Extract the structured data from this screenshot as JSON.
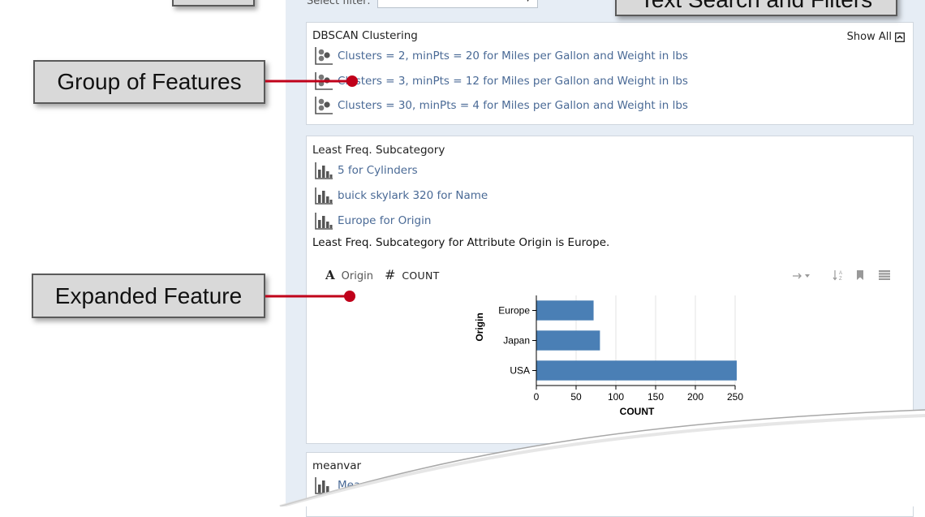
{
  "filter": {
    "label": "Select filter:"
  },
  "clustering": {
    "title": "DBSCAN Clustering",
    "show_all": "Show All",
    "items": [
      {
        "label": "Clusters = 2, minPts = 20 for Miles per Gallon and Weight in lbs"
      },
      {
        "label": "Clusters = 3, minPts = 12 for Miles per Gallon and Weight in lbs"
      },
      {
        "label": "Clusters = 30, minPts = 4 for Miles per Gallon and Weight in lbs"
      }
    ]
  },
  "least_freq": {
    "title": "Least Freq. Subcategory",
    "items": [
      {
        "label": "5 for Cylinders"
      },
      {
        "label": "buick skylark 320 for Name"
      },
      {
        "label": "Europe for Origin"
      }
    ],
    "description": "Least Freq. Subcategory for Attribute Origin is Europe.",
    "encoding": {
      "x_field": "Origin",
      "y_field": "COUNT"
    },
    "chart_data": {
      "type": "bar",
      "orientation": "horizontal",
      "categories": [
        "Europe",
        "Japan",
        "USA"
      ],
      "values": [
        72,
        80,
        252
      ],
      "xlabel": "COUNT",
      "ylabel": "Origin",
      "xlim": [
        0,
        250
      ],
      "xticks": [
        0,
        50,
        100,
        150,
        200,
        250
      ],
      "grid": true,
      "bar_color": "#4a7fb5"
    }
  },
  "meanvar": {
    "title": "meanvar",
    "first_item": "Mea"
  },
  "callouts": {
    "text_search": "Text Search and Filters",
    "group_of_features": "Group of Features",
    "expanded_feature": "Expanded Feature"
  },
  "colors": {
    "link": "#4a6a96",
    "panel": "#e6edf5",
    "accent_red": "#c0001a",
    "bar": "#4a7fb5"
  }
}
